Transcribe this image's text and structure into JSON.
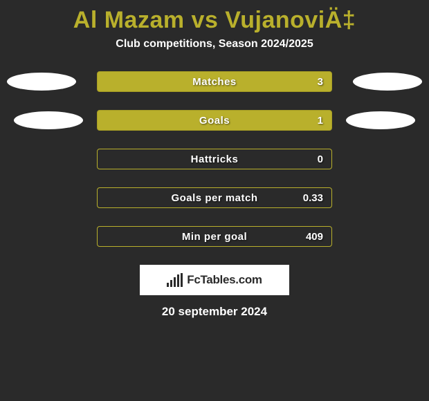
{
  "title": "Al Mazam vs VujanoviÄ‡",
  "subtitle": "Club competitions, Season 2024/2025",
  "stats": [
    {
      "label": "Matches",
      "value": "3",
      "filled": true,
      "ellipses": true,
      "ellipse_row": 1
    },
    {
      "label": "Goals",
      "value": "1",
      "filled": true,
      "ellipses": true,
      "ellipse_row": 2
    },
    {
      "label": "Hattricks",
      "value": "0",
      "filled": false,
      "ellipses": false
    },
    {
      "label": "Goals per match",
      "value": "0.33",
      "filled": false,
      "ellipses": false
    },
    {
      "label": "Min per goal",
      "value": "409",
      "filled": false,
      "ellipses": false
    }
  ],
  "logo_text": "FcTables.com",
  "date": "20 september 2024",
  "colors": {
    "accent": "#b9b02c",
    "background": "#2a2a2a",
    "text_light": "#ffffff"
  },
  "logo_bars": [
    6,
    10,
    14,
    18,
    20
  ]
}
